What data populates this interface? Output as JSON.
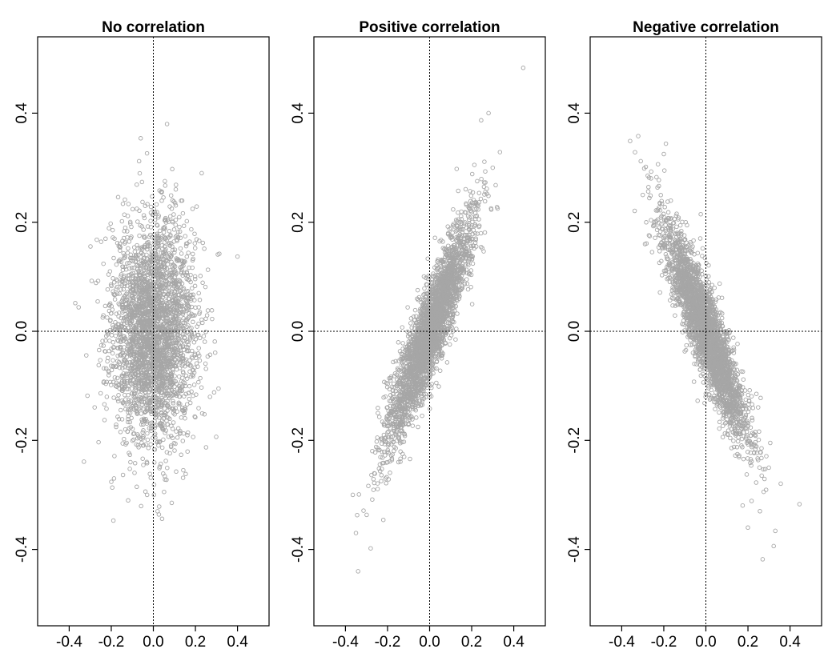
{
  "chart_data": [
    {
      "type": "scatter",
      "title": "No correlation",
      "xlabel": "",
      "ylabel": "",
      "xlim": [
        -0.55,
        0.55
      ],
      "ylim": [
        -0.54,
        0.54
      ],
      "xticks": [
        "-0.4",
        "-0.2",
        "0.0",
        "0.2",
        "0.4"
      ],
      "yticks": [
        "-0.4",
        "-0.2",
        "0.0",
        "0.2",
        "0.4"
      ],
      "reference_lines": {
        "x": 0.0,
        "y": 0.0,
        "style": "dotted"
      },
      "point_color": "#a6a6a6",
      "point_count": 3000,
      "distribution": {
        "mean_x": 0.0,
        "mean_y": 0.0,
        "sd_x": 0.1,
        "sd_y": 0.1,
        "correlation": 0.0
      },
      "notable_points": [
        {
          "x": -0.355,
          "y": 0.044
        },
        {
          "x": -0.33,
          "y": -0.239
        },
        {
          "x": -0.19,
          "y": -0.347
        },
        {
          "x": -0.06,
          "y": 0.354
        },
        {
          "x": 0.065,
          "y": 0.38
        },
        {
          "x": 0.02,
          "y": -0.33
        },
        {
          "x": 0.4,
          "y": 0.137
        },
        {
          "x": 0.23,
          "y": 0.29
        },
        {
          "x": 0.31,
          "y": -0.105
        },
        {
          "x": -0.12,
          "y": -0.31
        }
      ],
      "grid": false
    },
    {
      "type": "scatter",
      "title": "Positive correlation",
      "xlabel": "",
      "ylabel": "",
      "xlim": [
        -0.55,
        0.55
      ],
      "ylim": [
        -0.54,
        0.54
      ],
      "xticks": [
        "-0.4",
        "-0.2",
        "0.0",
        "0.2",
        "0.4"
      ],
      "yticks": [
        "-0.4",
        "-0.2",
        "0.0",
        "0.2",
        "0.4"
      ],
      "reference_lines": {
        "x": 0.0,
        "y": 0.0,
        "style": "dotted"
      },
      "point_color": "#a6a6a6",
      "point_count": 3000,
      "distribution": {
        "mean_x": 0.0,
        "mean_y": 0.0,
        "sd_x": 0.1,
        "sd_y": 0.1,
        "correlation": 0.9
      },
      "notable_points": [
        {
          "x": 0.445,
          "y": 0.483
        },
        {
          "x": -0.34,
          "y": -0.44
        },
        {
          "x": -0.365,
          "y": -0.3
        },
        {
          "x": -0.28,
          "y": -0.398
        },
        {
          "x": 0.28,
          "y": 0.4
        },
        {
          "x": 0.245,
          "y": 0.387
        },
        {
          "x": 0.3,
          "y": 0.3
        },
        {
          "x": -0.35,
          "y": -0.37
        }
      ],
      "grid": false
    },
    {
      "type": "scatter",
      "title": "Negative correlation",
      "xlabel": "",
      "ylabel": "",
      "xlim": [
        -0.55,
        0.55
      ],
      "ylim": [
        -0.54,
        0.54
      ],
      "xticks": [
        "-0.4",
        "-0.2",
        "0.0",
        "0.2",
        "0.4"
      ],
      "yticks": [
        "-0.4",
        "-0.2",
        "0.0",
        "0.2",
        "0.4"
      ],
      "reference_lines": {
        "x": 0.0,
        "y": 0.0,
        "style": "dotted"
      },
      "point_color": "#a6a6a6",
      "point_count": 3000,
      "distribution": {
        "mean_x": 0.0,
        "mean_y": 0.0,
        "sd_x": 0.1,
        "sd_y": 0.1,
        "correlation": -0.9
      },
      "notable_points": [
        {
          "x": -0.36,
          "y": 0.349
        },
        {
          "x": 0.445,
          "y": -0.317
        },
        {
          "x": 0.27,
          "y": -0.418
        },
        {
          "x": -0.19,
          "y": 0.344
        },
        {
          "x": 0.33,
          "y": -0.366
        },
        {
          "x": -0.2,
          "y": 0.325
        },
        {
          "x": 0.2,
          "y": -0.36
        },
        {
          "x": -0.3,
          "y": 0.25
        }
      ],
      "grid": false
    }
  ]
}
